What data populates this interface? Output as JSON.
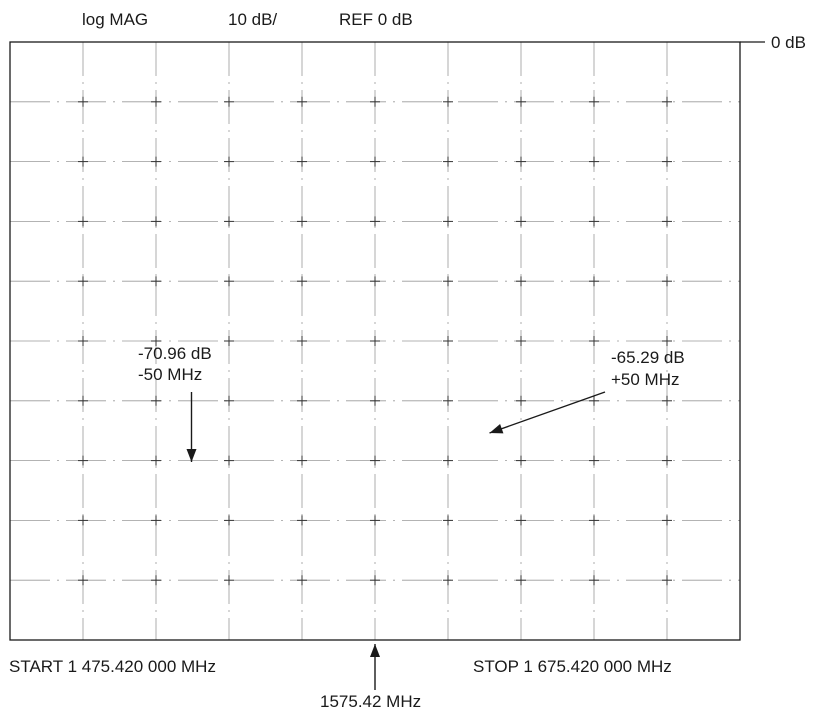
{
  "header": {
    "format": "log MAG",
    "scale": "10 dB/",
    "reference": "REF 0 dB"
  },
  "reference_marker": {
    "label": "0 dB"
  },
  "footer": {
    "start": "START  1 475.420 000 MHz",
    "stop": "STOP  1 675.420 000 MHz",
    "center": "1575.42 MHz"
  },
  "annotations": {
    "left": {
      "level": "-70.96 dB",
      "offset": "-50 MHz"
    },
    "right": {
      "level": "-65.29 dB",
      "offset": "+50 MHz"
    }
  },
  "chart_data": {
    "type": "line",
    "x_unit": "MHz",
    "y_unit": "dB",
    "xlim": [
      1475.42,
      1675.42
    ],
    "ylim": [
      -100,
      0
    ],
    "grid": true,
    "series": [],
    "markers": [
      {
        "x": 1525.42,
        "y": -70.96
      },
      {
        "x": 1625.42,
        "y": -65.29
      }
    ],
    "center_frequency": 1575.42
  }
}
